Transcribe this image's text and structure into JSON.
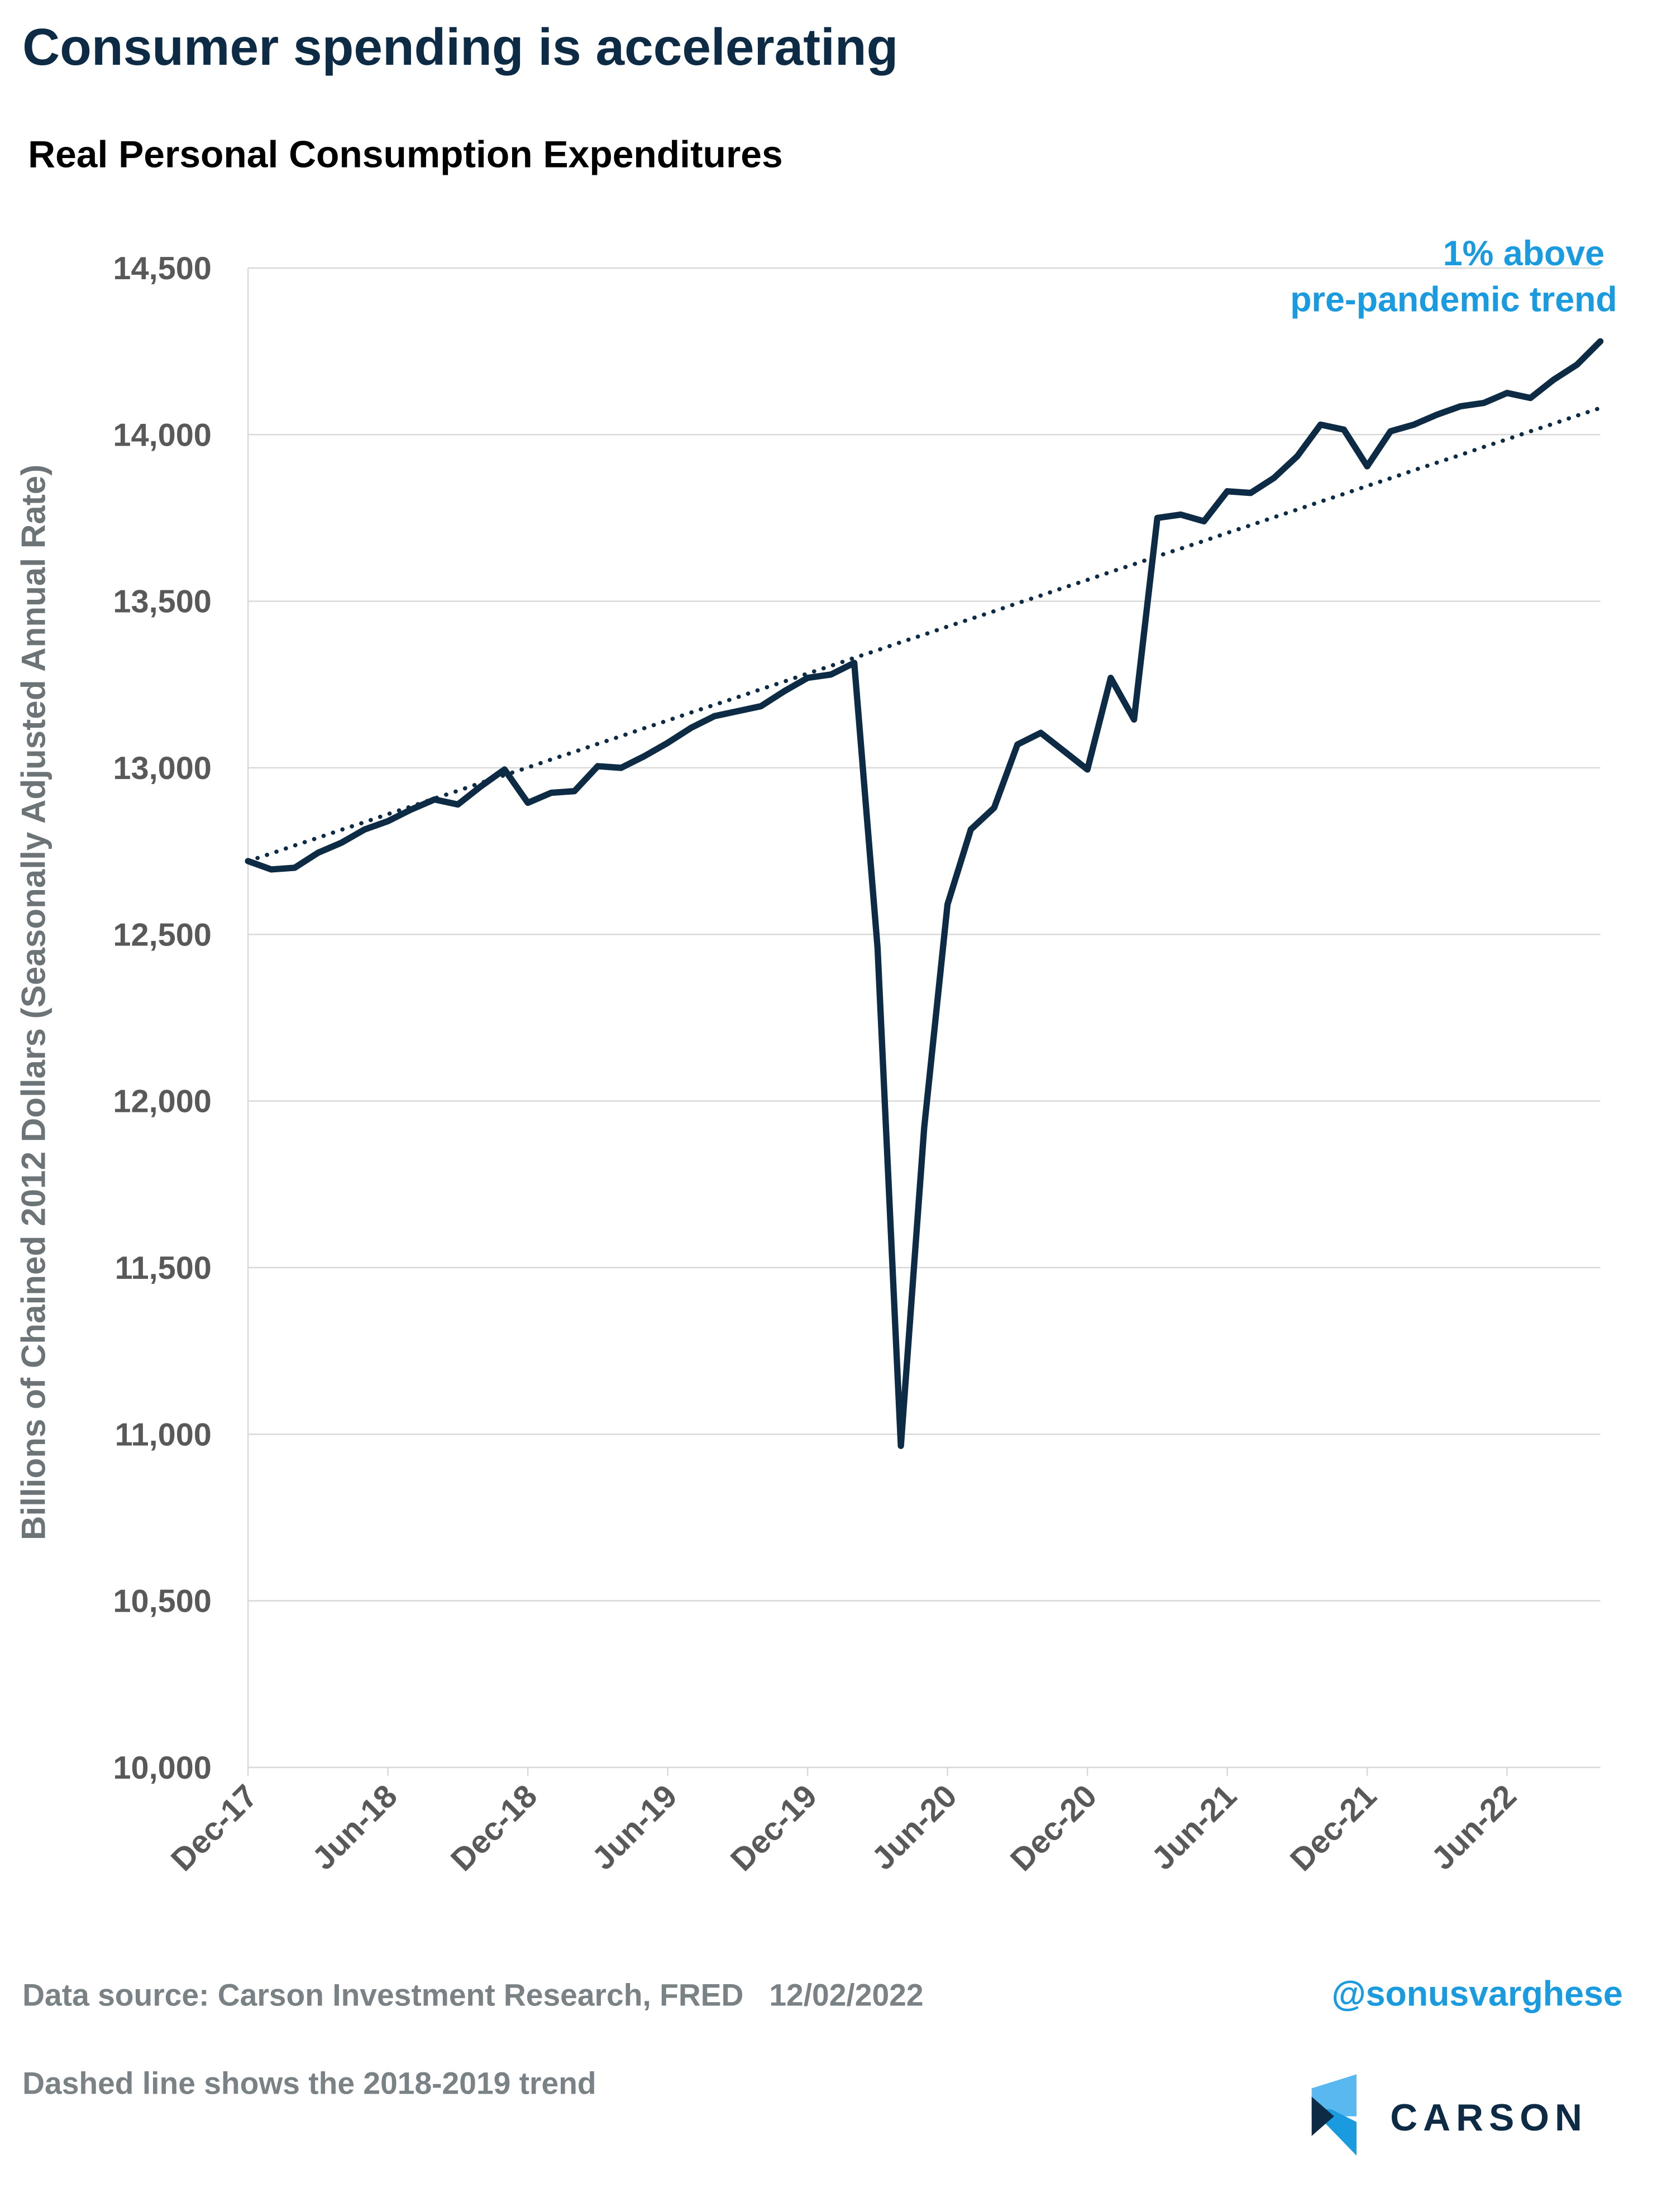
{
  "chart_data": {
    "type": "line",
    "title": "Consumer spending is accelerating",
    "subtitle": "Real Personal Consumption Expenditures",
    "y_label": "Billions of Chained 2012 Dollars (Seasonally Adjusted Annual Rate)",
    "annotation": [
      "1% above",
      "pre-pandemic trend"
    ],
    "source": "Data source: Carson Investment Research, FRED   12/02/2022",
    "handle": "@sonusvarghese",
    "note": "Dashed line shows the 2018-2019 trend",
    "logo": "CARSON",
    "categories": [
      "Dec-17",
      null,
      null,
      null,
      null,
      null,
      "Jun-18",
      null,
      null,
      null,
      null,
      null,
      "Dec-18",
      null,
      null,
      null,
      null,
      null,
      "Jun-19",
      null,
      null,
      null,
      null,
      null,
      "Dec-19",
      null,
      null,
      null,
      null,
      null,
      "Jun-20",
      null,
      null,
      null,
      null,
      null,
      "Dec-20",
      null,
      null,
      null,
      null,
      null,
      "Jun-21",
      null,
      null,
      null,
      null,
      null,
      "Dec-21",
      null,
      null,
      null,
      null,
      null,
      "Jun-22",
      null,
      null,
      null,
      null
    ],
    "series": [
      {
        "color": "#0d2b45",
        "style": "solid",
        "values": [
          12720,
          12695,
          12700,
          12745,
          12775,
          12815,
          12840,
          12875,
          12905,
          12890,
          12945,
          12995,
          12895,
          12925,
          12930,
          13005,
          13000,
          13035,
          13075,
          13120,
          13155,
          13170,
          13185,
          13230,
          13270,
          13280,
          13315,
          12460,
          10965,
          11920,
          12590,
          12815,
          12880,
          13070,
          13105,
          13050,
          12995,
          13270,
          13145,
          13750,
          13760,
          13740,
          13830,
          13825,
          13870,
          13935,
          14030,
          14015,
          13905,
          14010,
          14030,
          14060,
          14085,
          14095,
          14125,
          14110,
          14165,
          14210,
          14280
        ]
      },
      {
        "color": "#0d2b45",
        "style": "dotted",
        "values": [
          12720,
          12743,
          12767,
          12790,
          12814,
          12837,
          12861,
          12884,
          12908,
          12931,
          12955,
          12978,
          13001,
          13025,
          13048,
          13072,
          13095,
          13119,
          13142,
          13166,
          13189,
          13212,
          13236,
          13259,
          13283,
          13306,
          13330,
          13353,
          13377,
          13400,
          13424,
          13447,
          13470,
          13494,
          13517,
          13541,
          13564,
          13588,
          13611,
          13635,
          13658,
          13681,
          13705,
          13728,
          13752,
          13775,
          13799,
          13822,
          13846,
          13869,
          13893,
          13916,
          13939,
          13963,
          13986,
          14010,
          14033,
          14057,
          14080
        ]
      }
    ],
    "ylim": [
      10000,
      14500
    ],
    "yticks": [
      {
        "value": 10000,
        "label": "10,000"
      },
      {
        "value": 10500,
        "label": "10,500"
      },
      {
        "value": 11000,
        "label": "11,000"
      },
      {
        "value": 11500,
        "label": "11,500"
      },
      {
        "value": 12000,
        "label": "12,000"
      },
      {
        "value": 12500,
        "label": "12,500"
      },
      {
        "value": 13000,
        "label": "13,000"
      },
      {
        "value": 13500,
        "label": "13,500"
      },
      {
        "value": 14000,
        "label": "14,000"
      },
      {
        "value": 14500,
        "label": "14,500"
      }
    ],
    "grid": true
  }
}
